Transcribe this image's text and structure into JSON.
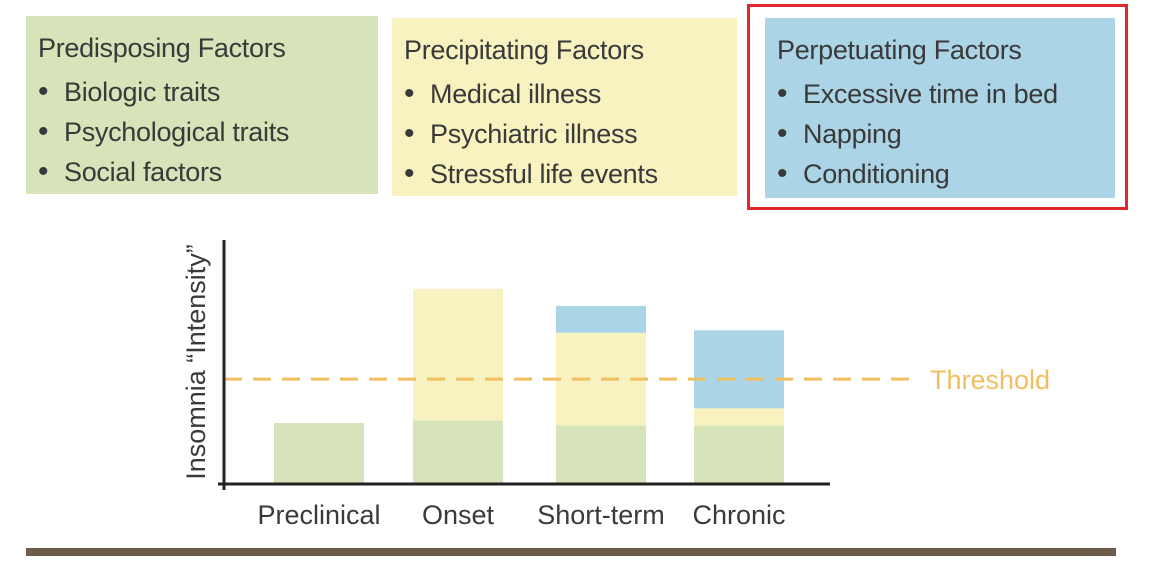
{
  "factors": {
    "predisposing": {
      "title": "Predisposing Factors",
      "items": [
        "Biologic traits",
        "Psychological traits",
        "Social factors"
      ],
      "color": "#d7e3b9"
    },
    "precipitating": {
      "title": "Precipitating Factors",
      "items": [
        "Medical illness",
        "Psychiatric illness",
        "Stressful life events"
      ],
      "color": "#f7f2c0"
    },
    "perpetuating": {
      "title": "Perpetuating Factors",
      "items": [
        "Excessive time in bed",
        "Napping",
        "Conditioning"
      ],
      "color": "#abd4e6",
      "highlighted": true,
      "highlight_color": "#e0282c"
    }
  },
  "chart_data": {
    "type": "bar",
    "stacked": true,
    "ylabel": "Insomnia “Intensity”",
    "categories": [
      "Preclinical",
      "Onset",
      "Short-term",
      "Chronic"
    ],
    "series": [
      {
        "key": "predisposing",
        "values": [
          0.25,
          0.26,
          0.24,
          0.24
        ],
        "color": "#d7e3b9"
      },
      {
        "key": "precipitating",
        "values": [
          0,
          0.54,
          0.38,
          0.07
        ],
        "color": "#f7f2c0"
      },
      {
        "key": "perpetuating",
        "values": [
          0,
          0,
          0.11,
          0.32
        ],
        "color": "#abd4e6"
      }
    ],
    "threshold": {
      "value": 0.43,
      "label": "Threshold",
      "color": "#f0c060"
    },
    "ylim": [
      0,
      1
    ],
    "grid": false,
    "axis_color": "#222222"
  }
}
